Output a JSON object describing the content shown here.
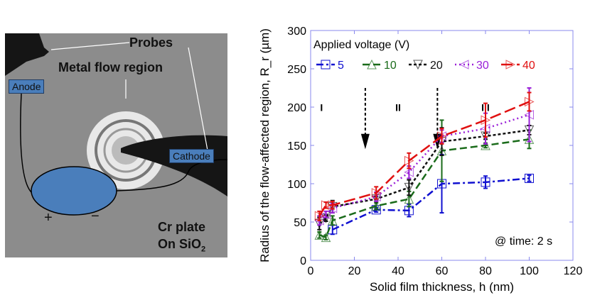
{
  "photo": {
    "probes_label": "Probes",
    "metal_flow_label": "Metal flow region",
    "anode_label": "Anode",
    "cathode_label": "Cathode",
    "plus": "+",
    "minus": "−",
    "plate_label_1": "Cr plate",
    "plate_label_2": "On SiO",
    "plate_label_sub": "2"
  },
  "chart_data": {
    "type": "line",
    "title": "",
    "xlabel": "Solid film thickness, h (nm)",
    "ylabel": "Radius of the flow-affected region, R_r (µm)",
    "xlim": [
      0,
      120
    ],
    "ylim": [
      0,
      300
    ],
    "xticks": [
      0,
      20,
      40,
      60,
      80,
      100,
      120
    ],
    "yticks": [
      0,
      50,
      100,
      150,
      200,
      250,
      300
    ],
    "legend_title": "Applied voltage (V)",
    "legend_position": "top-left",
    "annotation": "@ time: 2 s",
    "regions": [
      {
        "label": "I",
        "x": 5
      },
      {
        "label": "II",
        "x": 40
      },
      {
        "label": "III",
        "x": 80
      }
    ],
    "boundary_arrows_x": [
      25,
      58
    ],
    "series": [
      {
        "name": "5",
        "color": "#1010d0",
        "marker": "square",
        "dash": "10,4,3,4",
        "x": [
          10,
          30,
          45,
          60,
          80,
          100
        ],
        "y": [
          40,
          66,
          65,
          100,
          102,
          107
        ],
        "err": [
          6,
          3,
          8,
          38,
          8,
          4
        ]
      },
      {
        "name": "10",
        "color": "#1a6b1a",
        "marker": "triangle-up",
        "dash": "10,5",
        "x": [
          4,
          7,
          10,
          30,
          45,
          60,
          80,
          100
        ],
        "y": [
          33,
          30,
          52,
          71,
          80,
          143,
          150,
          158
        ],
        "err": [
          4,
          3,
          6,
          4,
          10,
          40,
          3,
          12
        ]
      },
      {
        "name": "20",
        "color": "#111111",
        "marker": "triangle-down",
        "dash": "4,3",
        "x": [
          4,
          7,
          10,
          30,
          45,
          60,
          80,
          100
        ],
        "y": [
          48,
          55,
          70,
          80,
          95,
          155,
          162,
          170
        ],
        "err": [
          8,
          4,
          8,
          3,
          10,
          18,
          4,
          6
        ]
      },
      {
        "name": "30",
        "color": "#9a20d8",
        "marker": "triangle-left",
        "dash": "2,4",
        "x": [
          4,
          7,
          10,
          30,
          45,
          60,
          80,
          100
        ],
        "y": [
          52,
          60,
          68,
          83,
          115,
          162,
          172,
          190
        ],
        "err": [
          6,
          4,
          6,
          6,
          8,
          8,
          20,
          35
        ]
      },
      {
        "name": "40",
        "color": "#e01010",
        "marker": "triangle-right",
        "dash": "16,6",
        "x": [
          4,
          7,
          10,
          30,
          45,
          60,
          80,
          100
        ],
        "y": [
          58,
          72,
          72,
          88,
          130,
          162,
          183,
          207
        ],
        "err": [
          6,
          4,
          5,
          8,
          10,
          10,
          22,
          12
        ]
      }
    ]
  }
}
